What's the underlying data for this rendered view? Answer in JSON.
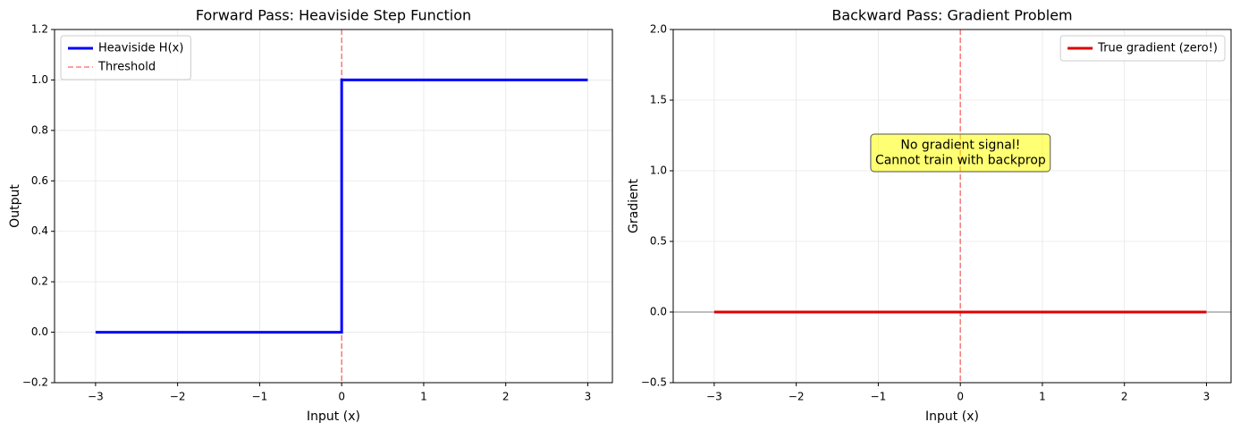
{
  "chart_data": [
    {
      "type": "line",
      "title": "Forward Pass: Heaviside Step Function",
      "x_label": "Input (x)",
      "y_label": "Output",
      "xlim": [
        -3.5,
        3.3
      ],
      "ylim": [
        -0.2,
        1.2
      ],
      "xticks": [
        {
          "value": -3,
          "label": "−3"
        },
        {
          "value": -2,
          "label": "−2"
        },
        {
          "value": -1,
          "label": "−1"
        },
        0,
        1,
        2,
        3
      ],
      "yticks": [
        {
          "value": -0.2,
          "label": "−0.2"
        },
        {
          "value": 0,
          "label": "0.0"
        },
        {
          "value": 0.2,
          "label": "0.2"
        },
        {
          "value": 0.4,
          "label": "0.4"
        },
        {
          "value": 0.6,
          "label": "0.6"
        },
        {
          "value": 0.8,
          "label": "0.8"
        },
        {
          "value": 1,
          "label": "1.0"
        },
        {
          "value": 1.2,
          "label": "1.2"
        }
      ],
      "grid": true,
      "legend": "upper-left",
      "series": [
        {
          "name": "Heaviside H(x)",
          "color": "#0000ff",
          "x": [
            -3,
            0,
            0,
            3
          ],
          "values": [
            0,
            0,
            1,
            1
          ]
        }
      ],
      "vlines": [
        {
          "name": "Threshold",
          "x": 0,
          "color": "#ff0000"
        }
      ]
    },
    {
      "type": "line",
      "title": "Backward Pass: Gradient Problem",
      "x_label": "Input (x)",
      "y_label": "Gradient",
      "xlim": [
        -3.5,
        3.3
      ],
      "ylim": [
        -0.5,
        2.0
      ],
      "xticks": [
        {
          "value": -3,
          "label": "−3"
        },
        {
          "value": -2,
          "label": "−2"
        },
        {
          "value": -1,
          "label": "−1"
        },
        0,
        1,
        2,
        3
      ],
      "yticks": [
        {
          "value": -0.5,
          "label": "−0.5"
        },
        {
          "value": 0,
          "label": "0.0"
        },
        {
          "value": 0.5,
          "label": "0.5"
        },
        {
          "value": 1,
          "label": "1.0"
        },
        {
          "value": 1.5,
          "label": "1.5"
        },
        {
          "value": 2,
          "label": "2.0"
        }
      ],
      "grid": true,
      "legend": "upper-right",
      "series": [
        {
          "name": "True gradient (zero!)",
          "color": "#dd0000",
          "x": [
            -3,
            3
          ],
          "values": [
            0,
            0
          ]
        }
      ],
      "vlines": [
        {
          "x": 0,
          "color": "#ff0000"
        }
      ],
      "hlines": [
        {
          "y": 0,
          "color": "#808080"
        }
      ],
      "annotation": [
        "No gradient signal!",
        "Cannot train with backprop"
      ]
    }
  ]
}
